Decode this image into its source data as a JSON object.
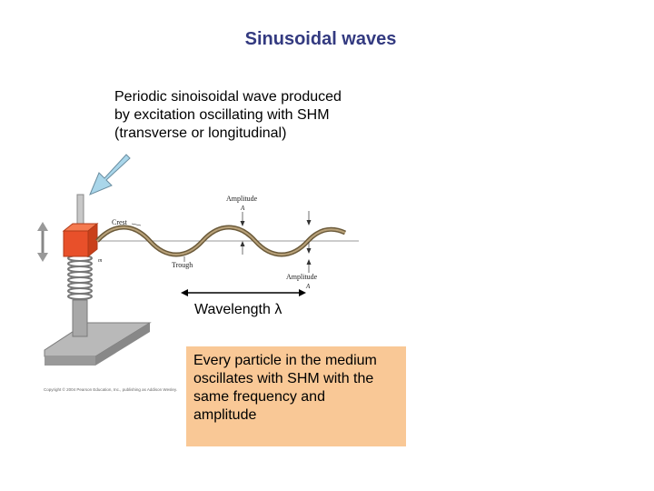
{
  "slide": {
    "title": "Sinusoidal waves",
    "description_lines": [
      "Periodic sinoisoidal wave produced",
      "by excitation oscillating with SHM",
      "(transverse or longitudinal)"
    ],
    "wavelength_label": "Wavelength λ",
    "note_lines": [
      "Every particle in the medium",
      "oscillates with SHM with the",
      "same frequency and",
      "amplitude"
    ],
    "note_color": "#f9c896",
    "title_color": "#333a80"
  },
  "figure": {
    "labels": {
      "crest": "Crest",
      "trough": "Trough",
      "amplitude_top": "Amplitude",
      "amplitude_top_symbol": "A",
      "amplitude_bottom": "Amplitude",
      "amplitude_bottom_symbol": "A",
      "mass": "m"
    },
    "copyright": "Copyright © 2004 Pearson Education, Inc., publishing as Addison Wesley.",
    "pointer_arrow_color": "#a9d6ea",
    "block_color": "#e8502a"
  }
}
